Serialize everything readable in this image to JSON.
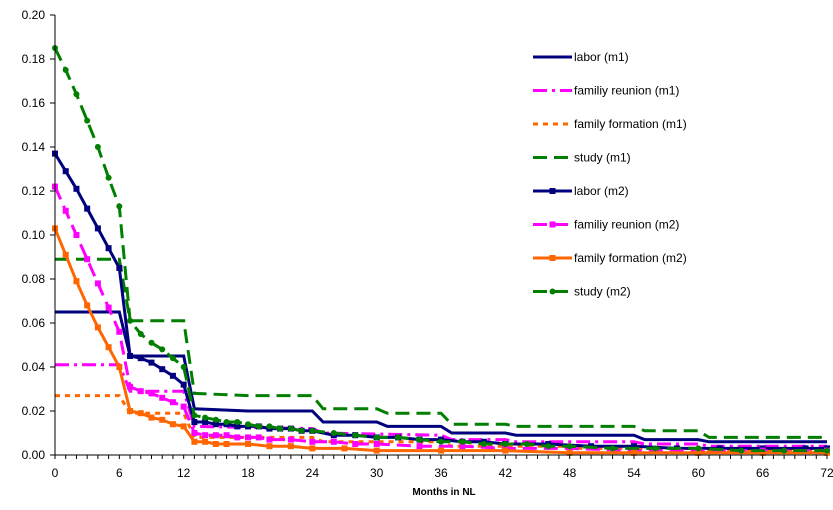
{
  "chart_data": {
    "type": "line",
    "title": "",
    "xlabel": "Months in NL",
    "ylabel": "",
    "xlim": [
      0,
      72
    ],
    "ylim": [
      0,
      0.2
    ],
    "x_ticks": [
      0,
      6,
      12,
      18,
      24,
      30,
      36,
      42,
      48,
      54,
      60,
      66,
      72
    ],
    "x_tick_labels": [
      "0",
      "6",
      "12",
      "18",
      "24",
      "30",
      "36",
      "42",
      "48",
      "54",
      "60",
      "66",
      "72"
    ],
    "y_ticks": [
      0,
      0.02,
      0.04,
      0.06,
      0.08,
      0.1,
      0.12,
      0.14,
      0.16,
      0.18,
      0.2
    ],
    "y_tick_labels": [
      "0.00",
      "0.02",
      "0.04",
      "0.06",
      "0.08",
      "0.10",
      "0.12",
      "0.14",
      "0.16",
      "0.18",
      "0.20"
    ],
    "grid": false,
    "legend_position": "right",
    "series": [
      {
        "name": "labor (m1)",
        "color": "#00007f",
        "style": "solid",
        "marker": "none",
        "points": [
          [
            0,
            0.065
          ],
          [
            6,
            0.065
          ],
          [
            7,
            0.045
          ],
          [
            12,
            0.045
          ],
          [
            13,
            0.021
          ],
          [
            18,
            0.02
          ],
          [
            24,
            0.02
          ],
          [
            25,
            0.015
          ],
          [
            30,
            0.015
          ],
          [
            31,
            0.013
          ],
          [
            36,
            0.013
          ],
          [
            37,
            0.01
          ],
          [
            42,
            0.01
          ],
          [
            43,
            0.009
          ],
          [
            54,
            0.009
          ],
          [
            55,
            0.007
          ],
          [
            60,
            0.007
          ],
          [
            61,
            0.006
          ],
          [
            72,
            0.006
          ]
        ]
      },
      {
        "name": "familiy reunion (m1)",
        "color": "#ff00ff",
        "style": "dashdot",
        "marker": "none",
        "points": [
          [
            0,
            0.041
          ],
          [
            6,
            0.041
          ],
          [
            7,
            0.029
          ],
          [
            12,
            0.029
          ],
          [
            13,
            0.013
          ],
          [
            24,
            0.012
          ],
          [
            25,
            0.01
          ],
          [
            36,
            0.009
          ],
          [
            37,
            0.007
          ],
          [
            42,
            0.007
          ],
          [
            43,
            0.006
          ],
          [
            54,
            0.006
          ],
          [
            55,
            0.005
          ],
          [
            60,
            0.005
          ],
          [
            61,
            0.004
          ],
          [
            72,
            0.004
          ]
        ]
      },
      {
        "name": "family formation (m1)",
        "color": "#ff6600",
        "style": "dotted",
        "marker": "none",
        "points": [
          [
            0,
            0.027
          ],
          [
            6,
            0.027
          ],
          [
            7,
            0.019
          ],
          [
            12,
            0.019
          ],
          [
            13,
            0.008
          ],
          [
            24,
            0.008
          ],
          [
            25,
            0.006
          ],
          [
            36,
            0.006
          ],
          [
            37,
            0.004
          ],
          [
            48,
            0.004
          ],
          [
            49,
            0.003
          ],
          [
            60,
            0.003
          ],
          [
            61,
            0.002
          ],
          [
            72,
            0.002
          ]
        ]
      },
      {
        "name": "study (m1)",
        "color": "#007f00",
        "style": "dashed",
        "marker": "none",
        "points": [
          [
            0,
            0.089
          ],
          [
            6,
            0.089
          ],
          [
            7,
            0.061
          ],
          [
            12,
            0.061
          ],
          [
            13,
            0.028
          ],
          [
            18,
            0.027
          ],
          [
            24,
            0.027
          ],
          [
            25,
            0.021
          ],
          [
            30,
            0.021
          ],
          [
            31,
            0.019
          ],
          [
            36,
            0.019
          ],
          [
            37,
            0.014
          ],
          [
            42,
            0.014
          ],
          [
            43,
            0.013
          ],
          [
            54,
            0.013
          ],
          [
            55,
            0.011
          ],
          [
            60,
            0.011
          ],
          [
            61,
            0.008
          ],
          [
            72,
            0.008
          ]
        ]
      },
      {
        "name": "labor (m2)",
        "color": "#00007f",
        "style": "solid",
        "marker": "square",
        "points": [
          [
            0,
            0.137
          ],
          [
            1,
            0.129
          ],
          [
            2,
            0.121
          ],
          [
            3,
            0.112
          ],
          [
            4,
            0.103
          ],
          [
            5,
            0.094
          ],
          [
            6,
            0.085
          ],
          [
            7,
            0.045
          ],
          [
            8,
            0.044
          ],
          [
            9,
            0.042
          ],
          [
            10,
            0.039
          ],
          [
            11,
            0.036
          ],
          [
            12,
            0.032
          ],
          [
            13,
            0.015
          ],
          [
            14,
            0.015
          ],
          [
            15,
            0.014
          ],
          [
            16,
            0.014
          ],
          [
            17,
            0.013
          ],
          [
            18,
            0.013
          ],
          [
            19,
            0.013
          ],
          [
            20,
            0.012
          ],
          [
            21,
            0.012
          ],
          [
            22,
            0.012
          ],
          [
            23,
            0.011
          ],
          [
            24,
            0.011
          ],
          [
            26,
            0.009
          ],
          [
            28,
            0.009
          ],
          [
            30,
            0.008
          ],
          [
            32,
            0.008
          ],
          [
            34,
            0.007
          ],
          [
            36,
            0.007
          ],
          [
            38,
            0.006
          ],
          [
            40,
            0.006
          ],
          [
            42,
            0.005
          ],
          [
            46,
            0.005
          ],
          [
            50,
            0.004
          ],
          [
            54,
            0.004
          ],
          [
            58,
            0.003
          ],
          [
            62,
            0.003
          ],
          [
            66,
            0.003
          ],
          [
            70,
            0.003
          ],
          [
            72,
            0.003
          ]
        ]
      },
      {
        "name": "familiy reunion (m2)",
        "color": "#ff00ff",
        "style": "dashed",
        "marker": "square",
        "points": [
          [
            0,
            0.122
          ],
          [
            1,
            0.111
          ],
          [
            2,
            0.1
          ],
          [
            3,
            0.089
          ],
          [
            4,
            0.078
          ],
          [
            5,
            0.067
          ],
          [
            6,
            0.056
          ],
          [
            7,
            0.031
          ],
          [
            8,
            0.029
          ],
          [
            9,
            0.028
          ],
          [
            10,
            0.026
          ],
          [
            11,
            0.024
          ],
          [
            12,
            0.022
          ],
          [
            13,
            0.01
          ],
          [
            14,
            0.009
          ],
          [
            15,
            0.009
          ],
          [
            16,
            0.009
          ],
          [
            17,
            0.008
          ],
          [
            18,
            0.008
          ],
          [
            19,
            0.008
          ],
          [
            20,
            0.007
          ],
          [
            22,
            0.007
          ],
          [
            24,
            0.006
          ],
          [
            26,
            0.006
          ],
          [
            28,
            0.005
          ],
          [
            30,
            0.005
          ],
          [
            34,
            0.004
          ],
          [
            38,
            0.004
          ],
          [
            42,
            0.003
          ],
          [
            48,
            0.003
          ],
          [
            54,
            0.002
          ],
          [
            60,
            0.002
          ],
          [
            66,
            0.002
          ],
          [
            72,
            0.002
          ]
        ]
      },
      {
        "name": "family formation (m2)",
        "color": "#ff6600",
        "style": "solid",
        "marker": "square",
        "points": [
          [
            0,
            0.103
          ],
          [
            1,
            0.091
          ],
          [
            2,
            0.079
          ],
          [
            3,
            0.068
          ],
          [
            4,
            0.058
          ],
          [
            5,
            0.049
          ],
          [
            6,
            0.04
          ],
          [
            7,
            0.02
          ],
          [
            8,
            0.019
          ],
          [
            9,
            0.017
          ],
          [
            10,
            0.016
          ],
          [
            11,
            0.014
          ],
          [
            12,
            0.013
          ],
          [
            13,
            0.006
          ],
          [
            14,
            0.006
          ],
          [
            15,
            0.005
          ],
          [
            16,
            0.005
          ],
          [
            18,
            0.005
          ],
          [
            20,
            0.004
          ],
          [
            22,
            0.004
          ],
          [
            24,
            0.003
          ],
          [
            27,
            0.003
          ],
          [
            30,
            0.002
          ],
          [
            36,
            0.002
          ],
          [
            42,
            0.002
          ],
          [
            48,
            0.001
          ],
          [
            54,
            0.001
          ],
          [
            60,
            0.001
          ],
          [
            66,
            0.001
          ],
          [
            72,
            0.001
          ]
        ]
      },
      {
        "name": "study (m2)",
        "color": "#007f00",
        "style": "dashed",
        "marker": "circle",
        "points": [
          [
            0,
            0.185
          ],
          [
            1,
            0.175
          ],
          [
            2,
            0.164
          ],
          [
            3,
            0.152
          ],
          [
            4,
            0.14
          ],
          [
            5,
            0.126
          ],
          [
            6,
            0.113
          ],
          [
            7,
            0.061
          ],
          [
            8,
            0.055
          ],
          [
            9,
            0.051
          ],
          [
            10,
            0.048
          ],
          [
            11,
            0.044
          ],
          [
            12,
            0.04
          ],
          [
            13,
            0.018
          ],
          [
            14,
            0.017
          ],
          [
            15,
            0.016
          ],
          [
            16,
            0.015
          ],
          [
            17,
            0.015
          ],
          [
            18,
            0.014
          ],
          [
            19,
            0.013
          ],
          [
            20,
            0.013
          ],
          [
            21,
            0.012
          ],
          [
            22,
            0.012
          ],
          [
            23,
            0.011
          ],
          [
            24,
            0.011
          ],
          [
            26,
            0.01
          ],
          [
            28,
            0.009
          ],
          [
            30,
            0.008
          ],
          [
            32,
            0.008
          ],
          [
            34,
            0.007
          ],
          [
            36,
            0.006
          ],
          [
            38,
            0.006
          ],
          [
            40,
            0.005
          ],
          [
            42,
            0.005
          ],
          [
            44,
            0.005
          ],
          [
            46,
            0.004
          ],
          [
            48,
            0.004
          ],
          [
            52,
            0.003
          ],
          [
            56,
            0.003
          ],
          [
            60,
            0.003
          ],
          [
            64,
            0.002
          ],
          [
            68,
            0.002
          ],
          [
            72,
            0.002
          ]
        ]
      }
    ]
  }
}
